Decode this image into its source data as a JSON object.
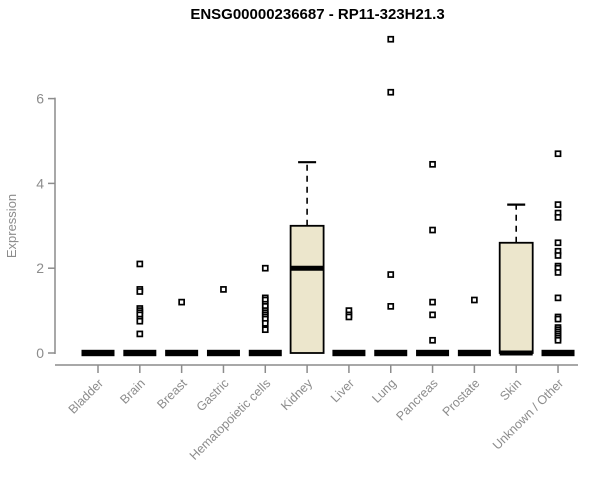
{
  "chart_data": {
    "type": "boxplot",
    "title": "ENSG00000236687 - RP11-323H21.3",
    "ylabel": "Expression",
    "xlabel": "",
    "yticks": [
      0,
      2,
      4,
      6
    ],
    "ylim": [
      0,
      7.5
    ],
    "grid": false,
    "legend": "none",
    "colors": {
      "box_fill": "#ece6cc",
      "box_stroke": "#000000",
      "median": "#000000",
      "axis": "#8c8c8c",
      "tick_label": "#8c8c8c",
      "title": "#000000"
    },
    "categories": [
      {
        "label": "Bladder",
        "q1": 0,
        "median": 0,
        "q3": 0,
        "whisker_low": 0,
        "whisker_high": 0,
        "outliers": []
      },
      {
        "label": "Brain",
        "q1": 0,
        "median": 0,
        "q3": 0,
        "whisker_low": 0,
        "whisker_high": 0,
        "outliers": [
          2.1,
          1.5,
          1.45,
          1.05,
          1.0,
          0.95,
          0.9,
          0.8,
          0.75,
          0.45
        ]
      },
      {
        "label": "Breast",
        "q1": 0,
        "median": 0,
        "q3": 0,
        "whisker_low": 0,
        "whisker_high": 0,
        "outliers": [
          1.2
        ]
      },
      {
        "label": "Gastric",
        "q1": 0,
        "median": 0,
        "q3": 0,
        "whisker_low": 0,
        "whisker_high": 0,
        "outliers": [
          1.5
        ]
      },
      {
        "label": "Hematopoietic cells",
        "q1": 0,
        "median": 0,
        "q3": 0,
        "whisker_low": 0,
        "whisker_high": 0,
        "outliers": [
          2.0,
          1.3,
          1.25,
          1.15,
          1.1,
          1.0,
          0.95,
          0.9,
          0.85,
          0.8,
          0.7,
          0.55
        ]
      },
      {
        "label": "Kidney",
        "q1": 0,
        "median": 2.0,
        "q3": 3.0,
        "whisker_low": 0,
        "whisker_high": 4.5,
        "outliers": []
      },
      {
        "label": "Liver",
        "q1": 0,
        "median": 0,
        "q3": 0,
        "whisker_low": 0,
        "whisker_high": 0,
        "outliers": [
          1.0,
          0.9,
          0.85
        ]
      },
      {
        "label": "Lung",
        "q1": 0,
        "median": 0,
        "q3": 0,
        "whisker_low": 0,
        "whisker_high": 0,
        "outliers": [
          7.4,
          6.15,
          1.85,
          1.1
        ]
      },
      {
        "label": "Pancreas",
        "q1": 0,
        "median": 0,
        "q3": 0,
        "whisker_low": 0,
        "whisker_high": 0,
        "outliers": [
          4.45,
          2.9,
          1.2,
          0.9,
          0.3
        ]
      },
      {
        "label": "Prostate",
        "q1": 0,
        "median": 0,
        "q3": 0,
        "whisker_low": 0,
        "whisker_high": 0,
        "outliers": [
          1.25
        ]
      },
      {
        "label": "Skin",
        "q1": 0,
        "median": 0,
        "q3": 2.6,
        "whisker_low": 0,
        "whisker_high": 3.5,
        "outliers": []
      },
      {
        "label": "Unknown / Other",
        "q1": 0,
        "median": 0,
        "q3": 0,
        "whisker_low": 0,
        "whisker_high": 0,
        "outliers": [
          4.7,
          3.5,
          3.3,
          3.2,
          2.6,
          2.4,
          2.3,
          2.05,
          2.0,
          1.9,
          1.3,
          0.85,
          0.8,
          0.6,
          0.55,
          0.5,
          0.45,
          0.4,
          0.35,
          0.3
        ]
      }
    ]
  }
}
